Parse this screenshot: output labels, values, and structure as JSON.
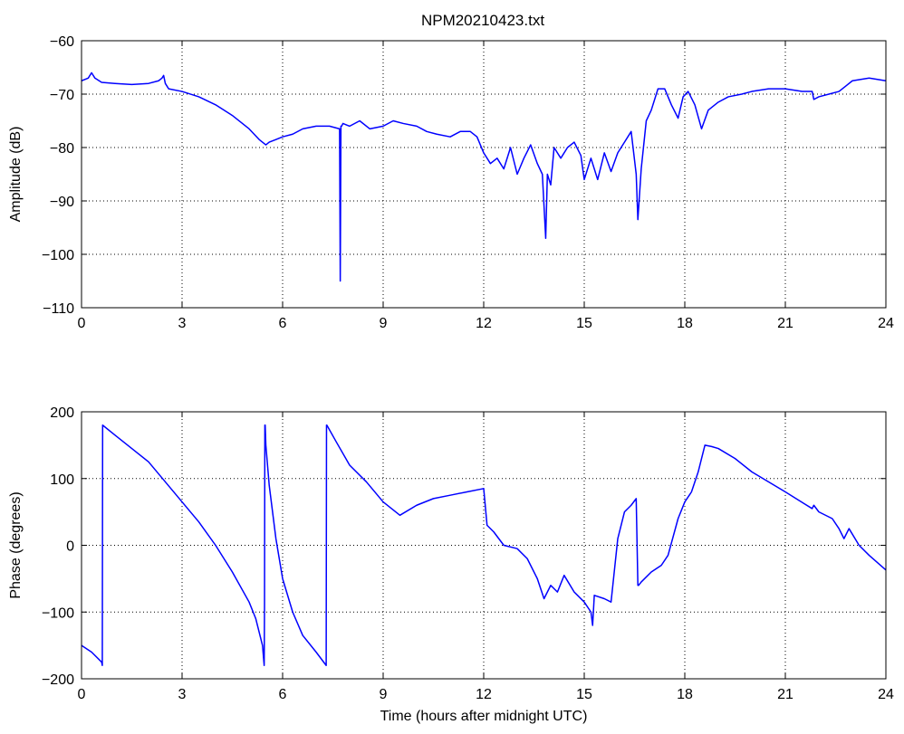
{
  "figure_title": "NPM20210423.txt",
  "chart_data": [
    {
      "type": "line",
      "title": "NPM20210423.txt",
      "xlabel": "",
      "ylabel": "Amplitude (dB)",
      "xlim": [
        0,
        24
      ],
      "ylim": [
        -110,
        -60
      ],
      "xticks": [
        0,
        3,
        6,
        9,
        12,
        15,
        18,
        21,
        24
      ],
      "yticks": [
        -110,
        -100,
        -90,
        -80,
        -70,
        -60
      ],
      "xtick_labels": [
        "0",
        "3",
        "6",
        "9",
        "12",
        "15",
        "18",
        "21",
        "24"
      ],
      "ytick_labels": [
        "−110",
        "−100",
        "−90",
        "−80",
        "−70",
        "−60"
      ],
      "grid": true,
      "line_color": "#0000ff",
      "series": [
        {
          "x": [
            0,
            0.2,
            0.3,
            0.4,
            0.6,
            1.0,
            1.5,
            2.0,
            2.3,
            2.4,
            2.45,
            2.5,
            2.6,
            3.0,
            3.5,
            4.0,
            4.5,
            5.0,
            5.3,
            5.5,
            5.6,
            5.8,
            6.0,
            6.3,
            6.6,
            7.0,
            7.4,
            7.7,
            7.72,
            7.74,
            7.76,
            7.8,
            8.0,
            8.3,
            8.6,
            9.0,
            9.3,
            9.6,
            10.0,
            10.3,
            10.6,
            11.0,
            11.3,
            11.6,
            11.8,
            12.0,
            12.2,
            12.4,
            12.6,
            12.8,
            13.0,
            13.2,
            13.4,
            13.6,
            13.75,
            13.85,
            13.9,
            14.0,
            14.1,
            14.3,
            14.5,
            14.7,
            14.9,
            15.0,
            15.2,
            15.4,
            15.6,
            15.8,
            16.0,
            16.2,
            16.4,
            16.55,
            16.6,
            16.7,
            16.85,
            17.0,
            17.2,
            17.4,
            17.6,
            17.8,
            17.95,
            18.1,
            18.3,
            18.5,
            18.7,
            19.0,
            19.3,
            19.7,
            20.0,
            20.5,
            21.0,
            21.5,
            21.8,
            21.85,
            22.0,
            22.3,
            22.6,
            22.8,
            23.0,
            23.5,
            24.0
          ],
          "y": [
            -67.5,
            -67,
            -66,
            -67,
            -67.8,
            -68,
            -68.2,
            -68,
            -67.5,
            -67,
            -66.5,
            -68,
            -69,
            -69.5,
            -70.5,
            -72,
            -74,
            -76.5,
            -78.5,
            -79.5,
            -79,
            -78.5,
            -78,
            -77.5,
            -76.5,
            -76,
            -76,
            -76.5,
            -105,
            -76,
            -76,
            -75.5,
            -76,
            -75,
            -76.5,
            -76,
            -75,
            -75.5,
            -76,
            -77,
            -77.5,
            -78,
            -77,
            -77,
            -78,
            -81,
            -83,
            -82,
            -84,
            -80,
            -85,
            -82,
            -79.5,
            -83,
            -85,
            -97,
            -85,
            -87,
            -80,
            -82,
            -80,
            -79,
            -81.5,
            -86,
            -82,
            -86,
            -81,
            -84.5,
            -81,
            -79,
            -77,
            -85,
            -93.5,
            -84,
            -75,
            -73,
            -69,
            -69,
            -72,
            -74.5,
            -70.5,
            -69.5,
            -72,
            -76.5,
            -73,
            -71.5,
            -70.5,
            -70,
            -69.5,
            -69,
            -69,
            -69.5,
            -69.5,
            -71,
            -70.5,
            -70,
            -69.5,
            -68.5,
            -67.5,
            -67,
            -67.5
          ]
        }
      ]
    },
    {
      "type": "line",
      "title": "",
      "xlabel": "Time (hours after midnight UTC)",
      "ylabel": "Phase (degrees)",
      "xlim": [
        0,
        24
      ],
      "ylim": [
        -200,
        200
      ],
      "xticks": [
        0,
        3,
        6,
        9,
        12,
        15,
        18,
        21,
        24
      ],
      "yticks": [
        -200,
        -100,
        0,
        100,
        200
      ],
      "xtick_labels": [
        "0",
        "3",
        "6",
        "9",
        "12",
        "15",
        "18",
        "21",
        "24"
      ],
      "ytick_labels": [
        "−200",
        "−100",
        "0",
        "100",
        "200"
      ],
      "grid": true,
      "line_color": "#0000ff",
      "series": [
        {
          "x": [
            0,
            0.3,
            0.6,
            0.62,
            0.63,
            1.0,
            1.5,
            2.0,
            2.5,
            3.0,
            3.5,
            4.0,
            4.5,
            5.0,
            5.2,
            5.4,
            5.45,
            5.46,
            5.47,
            5.48,
            5.5,
            5.6,
            5.8,
            6.0,
            6.3,
            6.6,
            7.0,
            7.3,
            7.31,
            7.32,
            7.6,
            8.0,
            8.5,
            9.0,
            9.5,
            10.0,
            10.5,
            11.0,
            11.5,
            12.0,
            12.1,
            12.3,
            12.6,
            13.0,
            13.3,
            13.6,
            13.8,
            14.0,
            14.2,
            14.4,
            14.7,
            15.0,
            15.2,
            15.25,
            15.3,
            15.6,
            15.8,
            16.0,
            16.2,
            16.4,
            16.55,
            16.6,
            16.62,
            16.7,
            17.0,
            17.3,
            17.5,
            17.8,
            18.0,
            18.2,
            18.4,
            18.6,
            18.8,
            19.0,
            19.5,
            20.0,
            21.0,
            21.8,
            21.85,
            22.0,
            22.4,
            22.6,
            22.75,
            22.9,
            23.2,
            23.5,
            24.0
          ],
          "y": [
            -150,
            -160,
            -175,
            -180,
            180,
            165,
            145,
            125,
            95,
            65,
            35,
            0,
            -40,
            -85,
            -110,
            -150,
            -180,
            -90,
            180,
            180,
            150,
            90,
            10,
            -50,
            -100,
            -135,
            -160,
            -180,
            180,
            180,
            155,
            120,
            95,
            65,
            45,
            60,
            70,
            75,
            80,
            85,
            30,
            20,
            0,
            -5,
            -20,
            -50,
            -80,
            -60,
            -70,
            -45,
            -70,
            -85,
            -100,
            -120,
            -75,
            -80,
            -85,
            10,
            50,
            60,
            70,
            -60,
            -60,
            -55,
            -40,
            -30,
            -15,
            40,
            65,
            80,
            110,
            150,
            148,
            145,
            130,
            110,
            80,
            55,
            60,
            50,
            40,
            25,
            10,
            25,
            0,
            -15,
            -37
          ]
        }
      ]
    }
  ]
}
